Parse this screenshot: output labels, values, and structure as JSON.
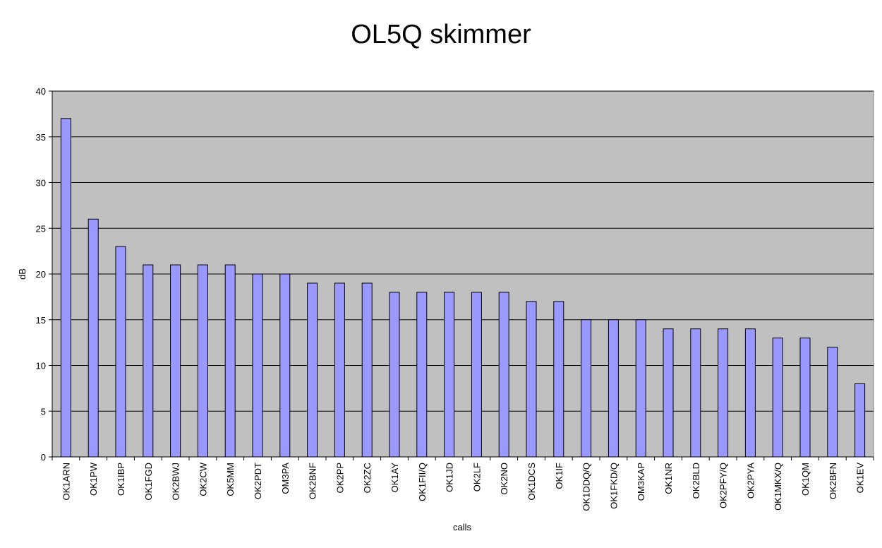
{
  "chart_data": {
    "type": "bar",
    "title": "OL5Q skimmer",
    "xlabel": "calls",
    "ylabel": "dB",
    "ylim": [
      0,
      40
    ],
    "yticks": [
      0,
      5,
      10,
      15,
      20,
      25,
      30,
      35,
      40
    ],
    "grid": true,
    "legend": "none",
    "categories": [
      "OK1ARN",
      "OK1PW",
      "OK1IBP",
      "OK1FGD",
      "OK2BWJ",
      "OK2CW",
      "OK5MM",
      "OK2PDT",
      "OM3PA",
      "OK2BNF",
      "OK2PP",
      "OK2ZC",
      "OK1AY",
      "OK1FII/Q",
      "OK1JD",
      "OK2LF",
      "OK2NO",
      "OK1DCS",
      "OK1IF",
      "OK1DDQ/Q",
      "OK1FKD/Q",
      "OM3KAP",
      "OK1NR",
      "OK2BLD",
      "OK2PFY/Q",
      "OK2PYA",
      "OK1MKX/Q",
      "OK1QM",
      "OK2BFN",
      "OK1EV"
    ],
    "values": [
      37,
      26,
      23,
      21,
      21,
      21,
      21,
      20,
      20,
      19,
      19,
      19,
      18,
      18,
      18,
      18,
      18,
      17,
      17,
      15,
      15,
      15,
      14,
      14,
      14,
      14,
      13,
      13,
      12,
      8
    ],
    "colors": {
      "bar": "#9999ff",
      "bar_border": "#000000",
      "plot_background": "#c0c0c0",
      "grid": "#000000"
    }
  }
}
